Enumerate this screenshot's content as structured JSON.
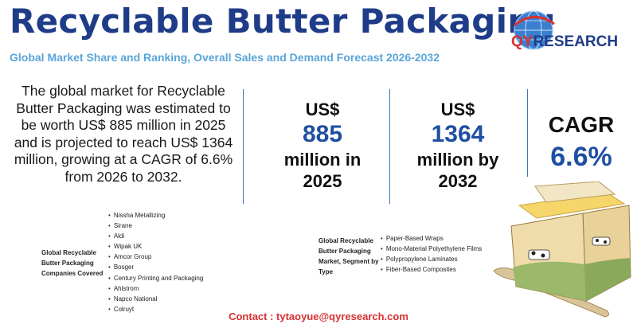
{
  "header": {
    "title": "Recyclable Butter Packaging",
    "subtitle": "Global Market Share and Ranking, Overall Sales and Demand Forecast 2026-2032"
  },
  "logo": {
    "prefix": "QY",
    "suffix": "RESEARCH",
    "icon": "globe-icon"
  },
  "summary": {
    "text": "The global market for Recyclable Butter Packaging was estimated to be worth US$ 885 million in 2025 and is projected to reach US$ 1364 million, growing at a CAGR of 6.6% from 2026 to 2032."
  },
  "stats": [
    {
      "prefix": "US$",
      "value": "885",
      "suffix_line1": "million in",
      "suffix_line2": "2025"
    },
    {
      "prefix": "US$",
      "value": "1364",
      "suffix_line1": "million by",
      "suffix_line2": "2032"
    },
    {
      "label": "CAGR",
      "value": "6.6%"
    }
  ],
  "companies": {
    "title_lines": [
      "Global Recyclable",
      "Butter Packaging",
      "Companies Covered"
    ],
    "items": [
      "Nissha Metallizing",
      "Sirane",
      "Aldi",
      "Wipak UK",
      "Amcor Group",
      "Bosger",
      "Century Printing and Packaging",
      "Ahlstrom",
      "Napco National",
      "Colruyt"
    ]
  },
  "segments": {
    "title_lines": [
      "Global Recyclable",
      "Butter Packaging",
      "Market, Segment by",
      "Type"
    ],
    "items": [
      "Paper-Based Wraps",
      "Mono-Material Polyethylene Films",
      "Polypropylene Laminates",
      "Fiber-Based Composites"
    ]
  },
  "contact": "Contact : tytaoyue@qyresearch.com",
  "colors": {
    "title": "#1f3c88",
    "subtitle": "#59a5d8",
    "accent": "#1f4fa0",
    "contact": "#d63031"
  }
}
